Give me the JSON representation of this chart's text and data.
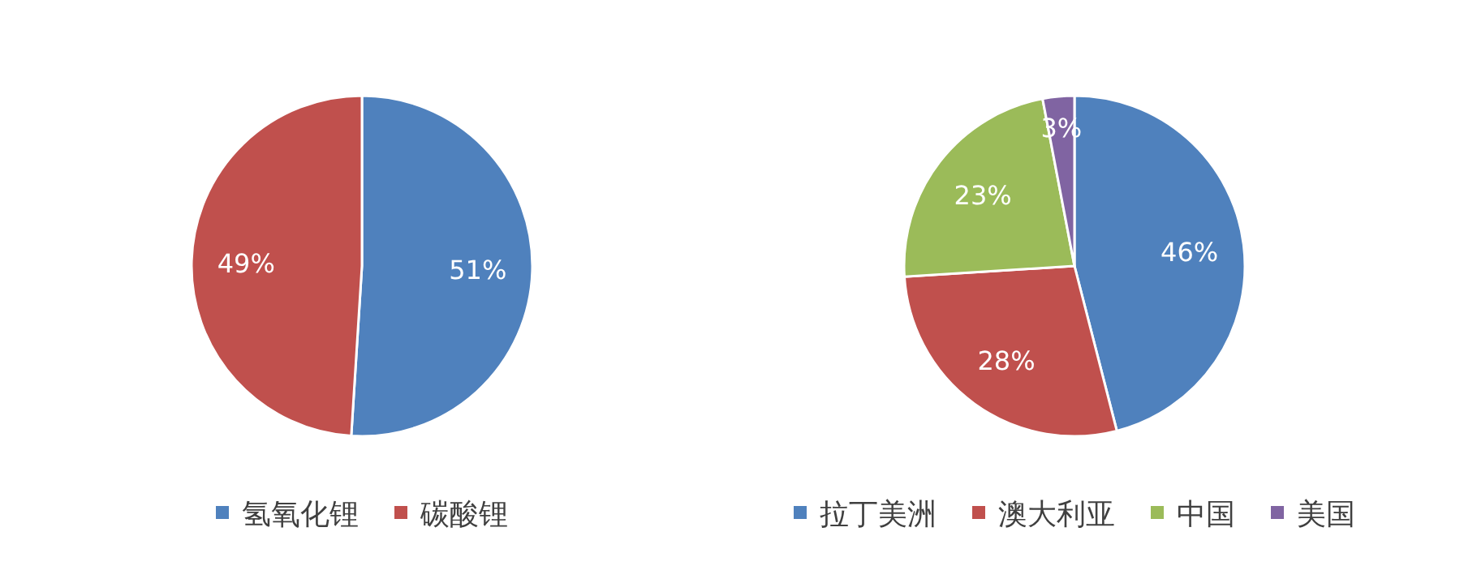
{
  "chart_data": [
    {
      "type": "pie",
      "categories": [
        "氢氧化锂",
        "碳酸锂"
      ],
      "values": [
        51,
        49
      ],
      "colors": [
        "#4f81bd",
        "#c0504d"
      ],
      "value_labels": [
        "51%",
        "49%"
      ],
      "legend": "bottom"
    },
    {
      "type": "pie",
      "categories": [
        "拉丁美洲",
        "澳大利亚",
        "中国",
        "美国"
      ],
      "values": [
        46,
        28,
        23,
        3
      ],
      "colors": [
        "#4f81bd",
        "#c0504d",
        "#9bbb59",
        "#8064a2"
      ],
      "value_labels": [
        "46%",
        "28%",
        "23%",
        "3%"
      ],
      "legend": "bottom"
    }
  ]
}
